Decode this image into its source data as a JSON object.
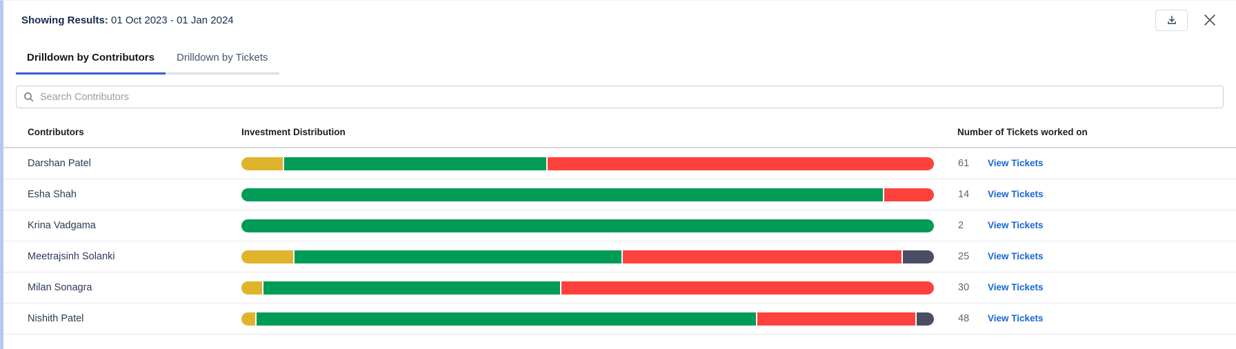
{
  "header": {
    "results_label": "Showing Results:",
    "results_range": " 01 Oct 2023 - 01 Jan 2024",
    "icons": [
      "download-icon",
      "close-icon"
    ]
  },
  "tabs": [
    {
      "label": "Drilldown by Contributors",
      "active": true
    },
    {
      "label": "Drilldown by Tickets",
      "active": false
    }
  ],
  "search": {
    "placeholder": "Search Contributors",
    "icon": "search-icon"
  },
  "table": {
    "columns": [
      "Contributors",
      "Investment Distribution",
      "Number of Tickets worked on"
    ],
    "view_tickets_label": "View Tickets",
    "rows": [
      {
        "name": "Darshan Patel",
        "tickets": "61",
        "segments": [
          {
            "status": "yellow",
            "pct": 6
          },
          {
            "status": "green",
            "pct": 38
          },
          {
            "status": "red",
            "pct": 56
          }
        ]
      },
      {
        "name": "Esha Shah",
        "tickets": "14",
        "segments": [
          {
            "status": "green",
            "pct": 92.8
          },
          {
            "status": "red",
            "pct": 7.2
          }
        ]
      },
      {
        "name": "Krina Vadgama",
        "tickets": "2",
        "segments": [
          {
            "status": "green",
            "pct": 100
          }
        ]
      },
      {
        "name": "Meetrajsinh Solanki",
        "tickets": "25",
        "segments": [
          {
            "status": "yellow",
            "pct": 7.5
          },
          {
            "status": "green",
            "pct": 47.5
          },
          {
            "status": "red",
            "pct": 40.5
          },
          {
            "status": "dark",
            "pct": 4.5
          }
        ]
      },
      {
        "name": "Milan Sonagra",
        "tickets": "30",
        "segments": [
          {
            "status": "yellow",
            "pct": 3
          },
          {
            "status": "green",
            "pct": 43
          },
          {
            "status": "red",
            "pct": 54
          }
        ]
      },
      {
        "name": "Nishith Patel",
        "tickets": "48",
        "segments": [
          {
            "status": "yellow",
            "pct": 2
          },
          {
            "status": "green",
            "pct": 72.5
          },
          {
            "status": "red",
            "pct": 23
          },
          {
            "status": "dark",
            "pct": 2.5
          }
        ]
      }
    ]
  },
  "colors": {
    "yellow": "#dfb32b",
    "green": "#009b56",
    "red": "#fd413c",
    "dark": "#4a4d63",
    "accent_blue": "#3d56d6",
    "link_blue": "#1767d2"
  }
}
